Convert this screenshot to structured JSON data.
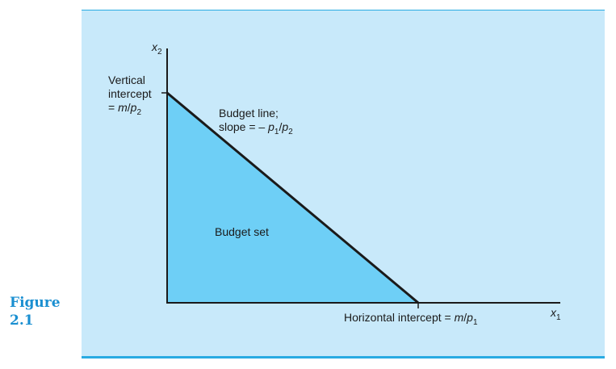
{
  "figure": {
    "label_word": "Figure",
    "label_number": "2.1"
  },
  "colors": {
    "panel": "#c8e9fa",
    "rule": "#29abe2",
    "budget_set_fill": "#6ecff6",
    "figure_label": "#1a8fd1",
    "line": "#1a1a1a"
  },
  "axes": {
    "y": {
      "var": "x",
      "sub": "2"
    },
    "x": {
      "var": "x",
      "sub": "1"
    }
  },
  "vertical_intercept": {
    "line1": "Vertical",
    "line2": "intercept",
    "eq_prefix": "= ",
    "m": "m",
    "slash": "/",
    "p": "p",
    "sub": "2"
  },
  "budget_line": {
    "line1": "Budget line;",
    "slope_prefix": "slope = – ",
    "p1": "p",
    "p1_sub": "1",
    "slash": "/",
    "p2": "p",
    "p2_sub": "2"
  },
  "budget_set": {
    "label": "Budget set"
  },
  "horizontal_intercept": {
    "prefix": "Horizontal intercept = ",
    "m": "m",
    "slash": "/",
    "p": "p",
    "sub": "1"
  }
}
